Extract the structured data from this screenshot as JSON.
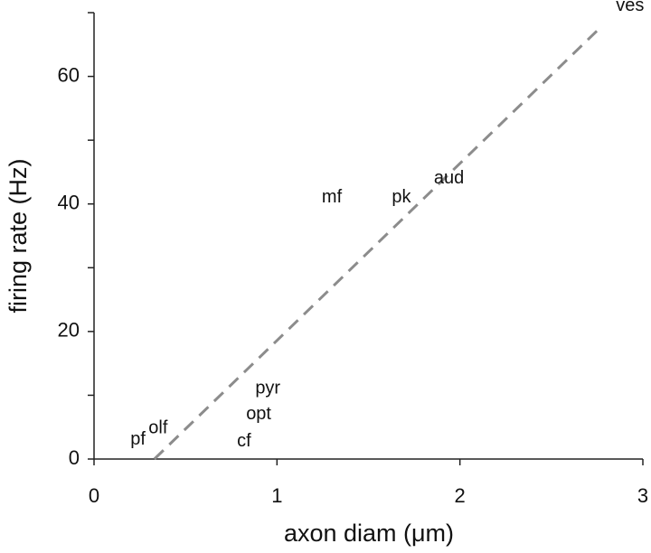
{
  "chart_data": {
    "type": "scatter",
    "x_label": "axon diam (μm)",
    "y_label": "firing rate (Hz)",
    "labels": [
      "pf",
      "olf",
      "cf",
      "opt",
      "pyr",
      "mf",
      "pk",
      "aud",
      "ves"
    ],
    "x": [
      0.24,
      0.35,
      0.82,
      0.9,
      0.95,
      1.3,
      1.68,
      1.94,
      2.93
    ],
    "y": [
      3,
      4.8,
      2.7,
      7,
      11,
      41,
      41,
      44,
      71
    ],
    "fit": {
      "x": [
        0.33,
        2.78
      ],
      "y": [
        0,
        68
      ],
      "color": "#8c8c8c"
    },
    "xlim": [
      0,
      3
    ],
    "xticks": [
      0,
      1,
      2,
      3
    ],
    "ylim": [
      0,
      70
    ],
    "yticks": [
      0,
      20,
      40,
      60
    ],
    "y_minor_ticks": [
      10,
      30,
      50,
      70
    ],
    "grid": false
  }
}
